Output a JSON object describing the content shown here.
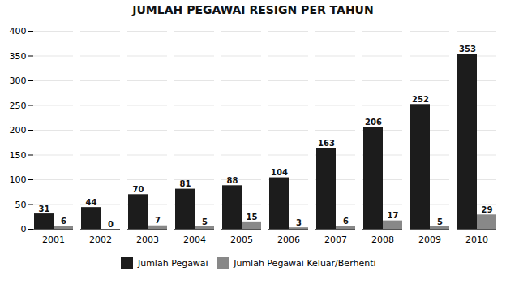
{
  "chart_data": {
    "type": "bar",
    "title": "JUMLAH PEGAWAI RESIGN PER TAHUN",
    "categories": [
      "2001",
      "2002",
      "2003",
      "2004",
      "2005",
      "2006",
      "2007",
      "2008",
      "2009",
      "2010"
    ],
    "series": [
      {
        "name": "Jumlah Pegawai",
        "color": "#1c1c1c",
        "values": [
          31,
          44,
          70,
          81,
          88,
          104,
          163,
          206,
          252,
          353
        ]
      },
      {
        "name": "Jumlah Pegawai Keluar/Berhenti",
        "color": "#888888",
        "values": [
          6,
          0,
          7,
          5,
          15,
          3,
          6,
          17,
          5,
          29
        ]
      }
    ],
    "ylim": [
      0,
      400
    ],
    "yticks": [
      0,
      50,
      100,
      150,
      200,
      250,
      300,
      350,
      400
    ],
    "grid": true,
    "data_labels": true,
    "legend": "bottom"
  }
}
